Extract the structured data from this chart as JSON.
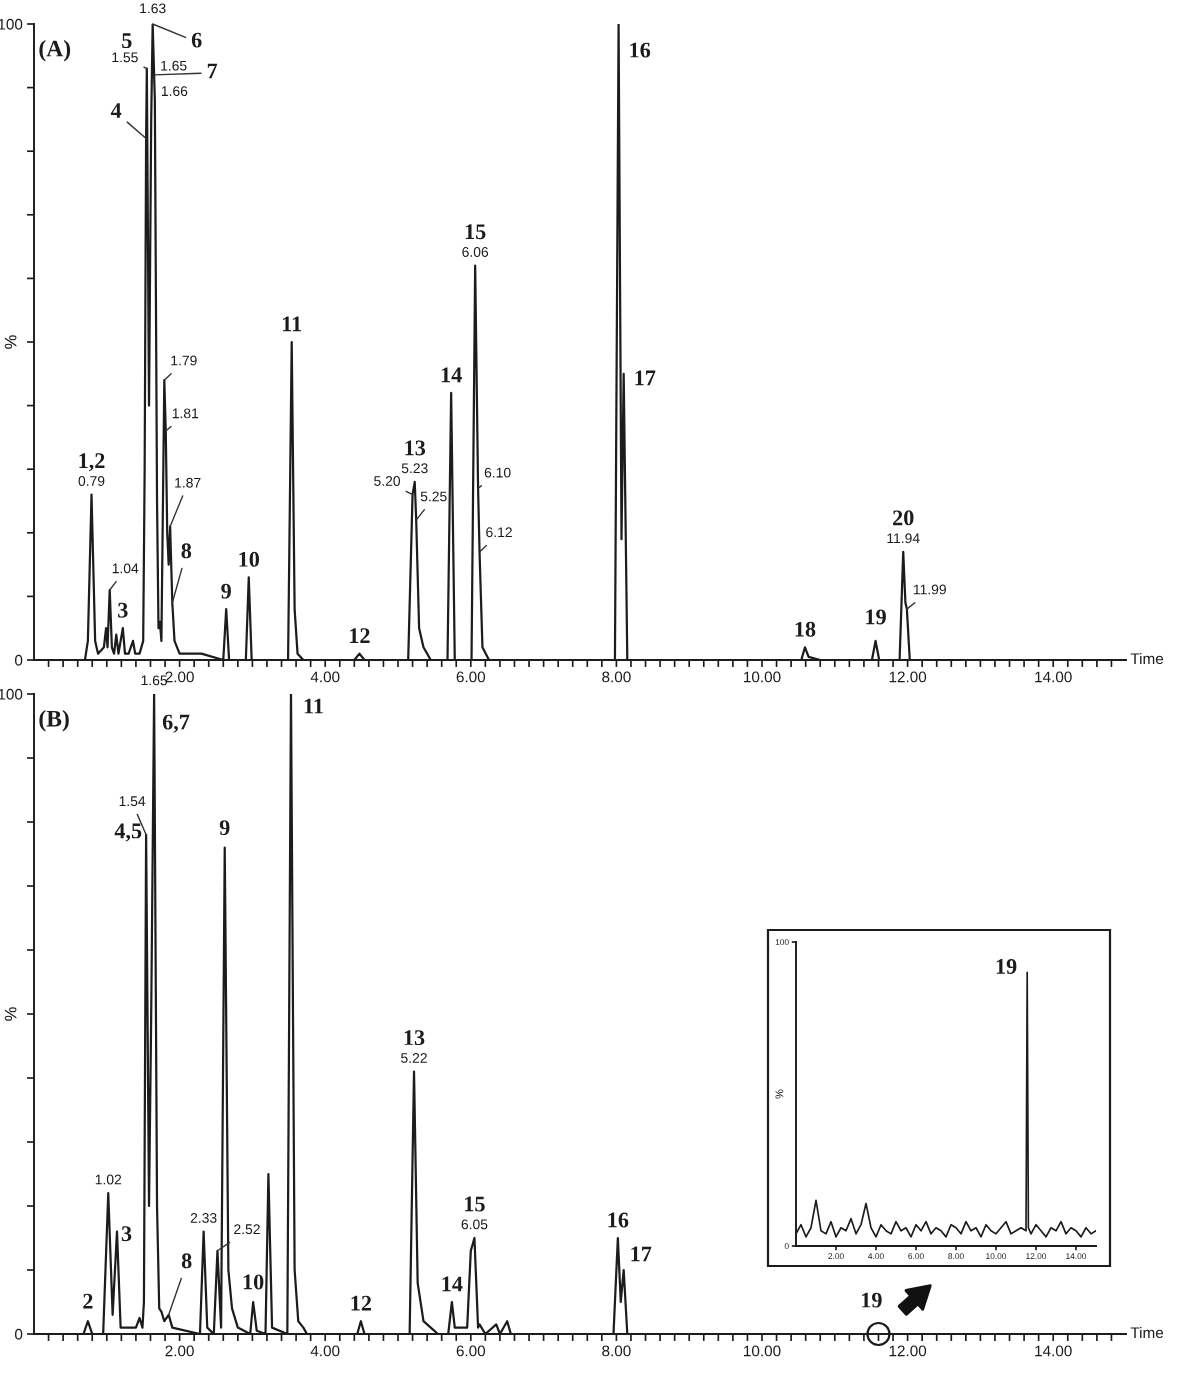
{
  "chart_data": [
    {
      "type": "line",
      "title": "(A)",
      "xlabel": "Time",
      "ylabel": "%",
      "xlim": [
        0,
        15
      ],
      "ylim": [
        0,
        100
      ],
      "xticks": [
        {
          "value": 0.2,
          "label": null
        },
        {
          "value": 0.4,
          "label": null
        },
        {
          "value": 0.6,
          "label": null
        },
        {
          "value": 0.8,
          "label": null
        },
        {
          "value": 1,
          "label": null
        },
        {
          "value": 1.2,
          "label": null
        },
        {
          "value": 1.4,
          "label": null
        },
        {
          "value": 1.6,
          "label": null
        },
        {
          "value": 1.8,
          "label": null
        },
        {
          "value": 2,
          "label": "2.00"
        },
        {
          "value": 2.2,
          "label": null
        },
        {
          "value": 2.4,
          "label": null
        },
        {
          "value": 2.6,
          "label": null
        },
        {
          "value": 2.8,
          "label": null
        },
        {
          "value": 3,
          "label": null
        },
        {
          "value": 3.2,
          "label": null
        },
        {
          "value": 3.4,
          "label": null
        },
        {
          "value": 3.6,
          "label": null
        },
        {
          "value": 3.8,
          "label": null
        },
        {
          "value": 4,
          "label": "4.00"
        },
        {
          "value": 4.2,
          "label": null
        },
        {
          "value": 4.4,
          "label": null
        },
        {
          "value": 4.6,
          "label": null
        },
        {
          "value": 4.8,
          "label": null
        },
        {
          "value": 5,
          "label": null
        },
        {
          "value": 5.2,
          "label": null
        },
        {
          "value": 5.4,
          "label": null
        },
        {
          "value": 5.6,
          "label": null
        },
        {
          "value": 5.8,
          "label": null
        },
        {
          "value": 6,
          "label": "6.00"
        },
        {
          "value": 6.2,
          "label": null
        },
        {
          "value": 6.4,
          "label": null
        },
        {
          "value": 6.6,
          "label": null
        },
        {
          "value": 6.8,
          "label": null
        },
        {
          "value": 7,
          "label": null
        },
        {
          "value": 7.2,
          "label": null
        },
        {
          "value": 7.4,
          "label": null
        },
        {
          "value": 7.6,
          "label": null
        },
        {
          "value": 7.8,
          "label": null
        },
        {
          "value": 8,
          "label": "8.00"
        },
        {
          "value": 8.2,
          "label": null
        },
        {
          "value": 8.4,
          "label": null
        },
        {
          "value": 8.6,
          "label": null
        },
        {
          "value": 8.8,
          "label": null
        },
        {
          "value": 9,
          "label": null
        },
        {
          "value": 9.2,
          "label": null
        },
        {
          "value": 9.4,
          "label": null
        },
        {
          "value": 9.6,
          "label": null
        },
        {
          "value": 9.8,
          "label": null
        },
        {
          "value": 10,
          "label": "10.00"
        },
        {
          "value": 10.2,
          "label": null
        },
        {
          "value": 10.4,
          "label": null
        },
        {
          "value": 10.6,
          "label": null
        },
        {
          "value": 10.8,
          "label": null
        },
        {
          "value": 11,
          "label": null
        },
        {
          "value": 11.2,
          "label": null
        },
        {
          "value": 11.4,
          "label": null
        },
        {
          "value": 11.6,
          "label": null
        },
        {
          "value": 11.8,
          "label": null
        },
        {
          "value": 12,
          "label": "12.00"
        },
        {
          "value": 12.2,
          "label": null
        },
        {
          "value": 12.4,
          "label": null
        },
        {
          "value": 12.6,
          "label": null
        },
        {
          "value": 12.8,
          "label": null
        },
        {
          "value": 13,
          "label": null
        },
        {
          "value": 13.2,
          "label": null
        },
        {
          "value": 13.4,
          "label": null
        },
        {
          "value": 13.6,
          "label": null
        },
        {
          "value": 13.8,
          "label": null
        },
        {
          "value": 14,
          "label": "14.00"
        },
        {
          "value": 14.2,
          "label": null
        },
        {
          "value": 14.4,
          "label": null
        },
        {
          "value": 14.6,
          "label": null
        },
        {
          "value": 14.8,
          "label": null
        }
      ],
      "yticks": [
        0,
        {
          "value": 10,
          "label": null
        },
        {
          "value": 20,
          "label": null
        },
        {
          "value": 30,
          "label": null
        },
        {
          "value": 40,
          "label": null
        },
        {
          "value": 50,
          "label": null
        },
        {
          "value": 60,
          "label": null
        },
        {
          "value": 70,
          "label": null
        },
        {
          "value": 80,
          "label": null
        },
        {
          "value": 90,
          "label": null
        },
        100
      ],
      "x": [
        0,
        0.7,
        0.74,
        0.79,
        0.84,
        0.88,
        0.96,
        0.99,
        1.01,
        1.04,
        1.07,
        1.1,
        1.13,
        1.16,
        1.19,
        1.22,
        1.25,
        1.3,
        1.36,
        1.39,
        1.45,
        1.5,
        1.52,
        1.54,
        1.55,
        1.58,
        1.61,
        1.63,
        1.65,
        1.66,
        1.69,
        1.71,
        1.73,
        1.75,
        1.79,
        1.81,
        1.83,
        1.85,
        1.87,
        1.9,
        1.93,
        2,
        2.3,
        2.6,
        2.64,
        2.68,
        2.91,
        2.95,
        2.99,
        3.49,
        3.54,
        3.58,
        3.62,
        3.7,
        4.4,
        4.47,
        4.54,
        5.14,
        5.2,
        5.23,
        5.25,
        5.29,
        5.35,
        5.45,
        5.68,
        5.73,
        5.78,
        6.01,
        6.06,
        6.1,
        6.12,
        6.16,
        6.25,
        7.98,
        8.03,
        8.07,
        8.1,
        8.15,
        10.54,
        10.59,
        10.64,
        10.8,
        11.51,
        11.56,
        11.61,
        11.89,
        11.94,
        11.97,
        11.99,
        12.03,
        15
      ],
      "series": [
        {
          "color": "#1c1c1c",
          "values": [
            0,
            0,
            3,
            26,
            3,
            1,
            2,
            5,
            2,
            11,
            2,
            1,
            4,
            1,
            3,
            5,
            1,
            1,
            3,
            1,
            1,
            3,
            30,
            82,
            93,
            40,
            85,
            100,
            92,
            88,
            25,
            5,
            6,
            3,
            44,
            36,
            20,
            15,
            21,
            9,
            3,
            1,
            1,
            0,
            8,
            0,
            0,
            13,
            0,
            0,
            50,
            8,
            1,
            0,
            0,
            1,
            0,
            0,
            26,
            28,
            22,
            5,
            2,
            0,
            0,
            42,
            0,
            0,
            62,
            27,
            17,
            2,
            0,
            0,
            100,
            19,
            45,
            0,
            0,
            2,
            0.5,
            0,
            0,
            3,
            0,
            0,
            17,
            9,
            8,
            0,
            0
          ]
        }
      ],
      "annotations": [
        {
          "text": "1,2",
          "x": 0.79,
          "y": 26
        },
        {
          "text": "0.79",
          "x": 0.79,
          "y": 26
        },
        {
          "text": "1.04",
          "x": 1.04,
          "y": 11
        },
        {
          "text": "3",
          "x": 1.22,
          "y": 5
        },
        {
          "text": "4",
          "x": 1.54,
          "y": 82
        },
        {
          "text": "5",
          "x": 1.55,
          "y": 93
        },
        {
          "text": "1.55",
          "x": 1.55,
          "y": 93
        },
        {
          "text": "6",
          "x": 1.63,
          "y": 100
        },
        {
          "text": "1.63",
          "x": 1.63,
          "y": 100
        },
        {
          "text": "7",
          "x": 1.65,
          "y": 92
        },
        {
          "text": "1.65",
          "x": 1.65,
          "y": 92
        },
        {
          "text": "1.66",
          "x": 1.66,
          "y": 88
        },
        {
          "text": "1.79",
          "x": 1.79,
          "y": 44
        },
        {
          "text": "1.81",
          "x": 1.81,
          "y": 36
        },
        {
          "text": "1.87",
          "x": 1.87,
          "y": 21
        },
        {
          "text": "8",
          "x": 1.9,
          "y": 9
        },
        {
          "text": "9",
          "x": 2.64,
          "y": 8
        },
        {
          "text": "10",
          "x": 2.95,
          "y": 13
        },
        {
          "text": "11",
          "x": 3.54,
          "y": 50
        },
        {
          "text": "12",
          "x": 4.47,
          "y": 1
        },
        {
          "text": "13",
          "x": 5.23,
          "y": 28
        },
        {
          "text": "5.23",
          "x": 5.23,
          "y": 28
        },
        {
          "text": "5.20",
          "x": 5.2,
          "y": 26
        },
        {
          "text": "5.25",
          "x": 5.25,
          "y": 22
        },
        {
          "text": "14",
          "x": 5.73,
          "y": 42
        },
        {
          "text": "15",
          "x": 6.06,
          "y": 62
        },
        {
          "text": "6.06",
          "x": 6.06,
          "y": 62
        },
        {
          "text": "6.10",
          "x": 6.1,
          "y": 27
        },
        {
          "text": "6.12",
          "x": 6.12,
          "y": 17
        },
        {
          "text": "16",
          "x": 8.03,
          "y": 100
        },
        {
          "text": "17",
          "x": 8.1,
          "y": 45
        },
        {
          "text": "18",
          "x": 10.59,
          "y": 2
        },
        {
          "text": "19",
          "x": 11.56,
          "y": 3
        },
        {
          "text": "20",
          "x": 11.94,
          "y": 17
        },
        {
          "text": "11.94",
          "x": 11.94,
          "y": 17
        },
        {
          "text": "11.99",
          "x": 11.99,
          "y": 8
        }
      ]
    },
    {
      "type": "line",
      "title": "(B)",
      "xlabel": "Time",
      "ylabel": "%",
      "xlim": [
        0,
        15
      ],
      "ylim": [
        0,
        100
      ],
      "xticks": [
        {
          "value": 0.2,
          "label": null
        },
        {
          "value": 0.4,
          "label": null
        },
        {
          "value": 0.6,
          "label": null
        },
        {
          "value": 0.8,
          "label": null
        },
        {
          "value": 1,
          "label": null
        },
        {
          "value": 1.2,
          "label": null
        },
        {
          "value": 1.4,
          "label": null
        },
        {
          "value": 1.6,
          "label": null
        },
        {
          "value": 1.8,
          "label": null
        },
        {
          "value": 2,
          "label": "2.00"
        },
        {
          "value": 2.2,
          "label": null
        },
        {
          "value": 2.4,
          "label": null
        },
        {
          "value": 2.6,
          "label": null
        },
        {
          "value": 2.8,
          "label": null
        },
        {
          "value": 3,
          "label": null
        },
        {
          "value": 3.2,
          "label": null
        },
        {
          "value": 3.4,
          "label": null
        },
        {
          "value": 3.6,
          "label": null
        },
        {
          "value": 3.8,
          "label": null
        },
        {
          "value": 4,
          "label": "4.00"
        },
        {
          "value": 4.2,
          "label": null
        },
        {
          "value": 4.4,
          "label": null
        },
        {
          "value": 4.6,
          "label": null
        },
        {
          "value": 4.8,
          "label": null
        },
        {
          "value": 5,
          "label": null
        },
        {
          "value": 5.2,
          "label": null
        },
        {
          "value": 5.4,
          "label": null
        },
        {
          "value": 5.6,
          "label": null
        },
        {
          "value": 5.8,
          "label": null
        },
        {
          "value": 6,
          "label": "6.00"
        },
        {
          "value": 6.2,
          "label": null
        },
        {
          "value": 6.4,
          "label": null
        },
        {
          "value": 6.6,
          "label": null
        },
        {
          "value": 6.8,
          "label": null
        },
        {
          "value": 7,
          "label": null
        },
        {
          "value": 7.2,
          "label": null
        },
        {
          "value": 7.4,
          "label": null
        },
        {
          "value": 7.6,
          "label": null
        },
        {
          "value": 7.8,
          "label": null
        },
        {
          "value": 8,
          "label": "8.00"
        },
        {
          "value": 8.2,
          "label": null
        },
        {
          "value": 8.4,
          "label": null
        },
        {
          "value": 8.6,
          "label": null
        },
        {
          "value": 8.8,
          "label": null
        },
        {
          "value": 9,
          "label": null
        },
        {
          "value": 9.2,
          "label": null
        },
        {
          "value": 9.4,
          "label": null
        },
        {
          "value": 9.6,
          "label": null
        },
        {
          "value": 9.8,
          "label": null
        },
        {
          "value": 10,
          "label": "10.00"
        },
        {
          "value": 10.2,
          "label": null
        },
        {
          "value": 10.4,
          "label": null
        },
        {
          "value": 10.6,
          "label": null
        },
        {
          "value": 10.8,
          "label": null
        },
        {
          "value": 11,
          "label": null
        },
        {
          "value": 11.2,
          "label": null
        },
        {
          "value": 11.4,
          "label": null
        },
        {
          "value": 11.6,
          "label": null
        },
        {
          "value": 11.8,
          "label": null
        },
        {
          "value": 12,
          "label": "12.00"
        },
        {
          "value": 12.2,
          "label": null
        },
        {
          "value": 12.4,
          "label": null
        },
        {
          "value": 12.6,
          "label": null
        },
        {
          "value": 12.8,
          "label": null
        },
        {
          "value": 13,
          "label": null
        },
        {
          "value": 13.2,
          "label": null
        },
        {
          "value": 13.4,
          "label": null
        },
        {
          "value": 13.6,
          "label": null
        },
        {
          "value": 13.8,
          "label": null
        },
        {
          "value": 14,
          "label": "14.00"
        },
        {
          "value": 14.2,
          "label": null
        },
        {
          "value": 14.4,
          "label": null
        },
        {
          "value": 14.6,
          "label": null
        },
        {
          "value": 14.8,
          "label": null
        }
      ],
      "yticks": [
        0,
        {
          "value": 10,
          "label": null
        },
        {
          "value": 20,
          "label": null
        },
        {
          "value": 30,
          "label": null
        },
        {
          "value": 40,
          "label": null
        },
        {
          "value": 50,
          "label": null
        },
        {
          "value": 60,
          "label": null
        },
        {
          "value": 70,
          "label": null
        },
        {
          "value": 80,
          "label": null
        },
        {
          "value": 90,
          "label": null
        },
        100
      ],
      "x": [
        0,
        0.68,
        0.74,
        0.8,
        0.95,
        1.02,
        1.08,
        1.14,
        1.19,
        1.4,
        1.45,
        1.49,
        1.51,
        1.54,
        1.58,
        1.61,
        1.65,
        1.69,
        1.72,
        1.75,
        1.79,
        1.85,
        1.9,
        2.28,
        2.33,
        2.38,
        2.47,
        2.52,
        2.57,
        2.62,
        2.67,
        2.72,
        2.8,
        2.97,
        3.01,
        3.06,
        3.18,
        3.22,
        3.27,
        3.48,
        3.53,
        3.58,
        3.63,
        3.7,
        3.75,
        4.44,
        4.49,
        4.54,
        5.16,
        5.22,
        5.27,
        5.35,
        5.45,
        5.55,
        5.69,
        5.74,
        5.78,
        5.85,
        5.95,
        6,
        6.05,
        6.1,
        6.12,
        6.2,
        6.35,
        6.4,
        6.5,
        6.55,
        7.96,
        8.02,
        8.06,
        8.1,
        8.15,
        15
      ],
      "series": [
        {
          "color": "#1c1c1c",
          "values": [
            0,
            0,
            2,
            0,
            0,
            22,
            3,
            16,
            1,
            1,
            2.5,
            1,
            5,
            78,
            20,
            50,
            100,
            20,
            4,
            3.5,
            2,
            3,
            1,
            0,
            16,
            1,
            0,
            13,
            1,
            76,
            10,
            4,
            1,
            0,
            5,
            0.5,
            0,
            25,
            1,
            0,
            100,
            10,
            2,
            1,
            0,
            0,
            2,
            0,
            0,
            41,
            8,
            2,
            1,
            0,
            0,
            5,
            1,
            1,
            1,
            13,
            15,
            1,
            1.5,
            0,
            1.5,
            0,
            2,
            0,
            0,
            15,
            5,
            10,
            0,
            0
          ]
        }
      ],
      "annotations": [
        {
          "text": "2",
          "x": 0.74,
          "y": 2
        },
        {
          "text": "1.02",
          "x": 1.02,
          "y": 22
        },
        {
          "text": "3",
          "x": 1.14,
          "y": 16
        },
        {
          "text": "1.54",
          "x": 1.54,
          "y": 78
        },
        {
          "text": "4,5",
          "x": 1.54,
          "y": 78
        },
        {
          "text": "1.65",
          "x": 1.65,
          "y": 100
        },
        {
          "text": "6,7",
          "x": 1.65,
          "y": 100
        },
        {
          "text": "8",
          "x": 1.85,
          "y": 3
        },
        {
          "text": "2.33",
          "x": 2.33,
          "y": 16
        },
        {
          "text": "2.52",
          "x": 2.52,
          "y": 13
        },
        {
          "text": "9",
          "x": 2.62,
          "y": 76
        },
        {
          "text": "10",
          "x": 3.01,
          "y": 5
        },
        {
          "text": "11",
          "x": 3.53,
          "y": 100
        },
        {
          "text": "12",
          "x": 4.49,
          "y": 2
        },
        {
          "text": "13",
          "x": 5.22,
          "y": 41
        },
        {
          "text": "5.22",
          "x": 5.22,
          "y": 41
        },
        {
          "text": "14",
          "x": 5.74,
          "y": 5
        },
        {
          "text": "15",
          "x": 6.05,
          "y": 15
        },
        {
          "text": "6.05",
          "x": 6.05,
          "y": 15
        },
        {
          "text": "16",
          "x": 8.02,
          "y": 15
        },
        {
          "text": "17",
          "x": 8.1,
          "y": 10
        },
        {
          "text": "19",
          "x": 11.6,
          "y": 0
        }
      ]
    },
    {
      "type": "line",
      "ylabel": "%",
      "xlim": [
        0,
        15
      ],
      "ylim": [
        0,
        100
      ],
      "xticks": [
        {
          "value": 2,
          "label": "2.00"
        },
        {
          "value": 4,
          "label": "4.00"
        },
        {
          "value": 6,
          "label": "6.00"
        },
        {
          "value": 8,
          "label": "8.00"
        },
        {
          "value": 10,
          "label": "10.00"
        },
        {
          "value": 12,
          "label": "12.00"
        },
        {
          "value": 14,
          "label": "14.00"
        }
      ],
      "yticks": [
        0,
        100
      ],
      "x": [
        0,
        0.25,
        0.5,
        0.75,
        1,
        1.25,
        1.5,
        1.75,
        2,
        2.25,
        2.5,
        2.75,
        3,
        3.25,
        3.5,
        3.75,
        4,
        4.25,
        4.5,
        4.75,
        5,
        5.25,
        5.5,
        5.75,
        6,
        6.25,
        6.5,
        6.75,
        7,
        7.25,
        7.5,
        7.75,
        8,
        8.25,
        8.5,
        8.75,
        9,
        9.25,
        9.5,
        9.75,
        10,
        10.25,
        10.5,
        10.75,
        11,
        11.25,
        11.5,
        11.56,
        11.62,
        11.75,
        12,
        12.25,
        12.5,
        12.75,
        13,
        13.25,
        13.5,
        13.75,
        14,
        14.25,
        14.5,
        14.75,
        15
      ],
      "series": [
        {
          "color": "#1c1c1c",
          "values": [
            4,
            7,
            3,
            6,
            15,
            5,
            4,
            8,
            3,
            6,
            5,
            9,
            4,
            7,
            14,
            6,
            3,
            7,
            5,
            4,
            8,
            5,
            6,
            3,
            7,
            5,
            8,
            4,
            6,
            5,
            3,
            7,
            6,
            4,
            8,
            5,
            6,
            3,
            7,
            5,
            4,
            6,
            8,
            4,
            5,
            6,
            5,
            90,
            6,
            4,
            7,
            5,
            3,
            6,
            5,
            8,
            4,
            6,
            5,
            3,
            6,
            4,
            5
          ]
        }
      ],
      "annotations": [
        {
          "text": "19",
          "x": 11.56,
          "y": 90
        }
      ]
    }
  ]
}
